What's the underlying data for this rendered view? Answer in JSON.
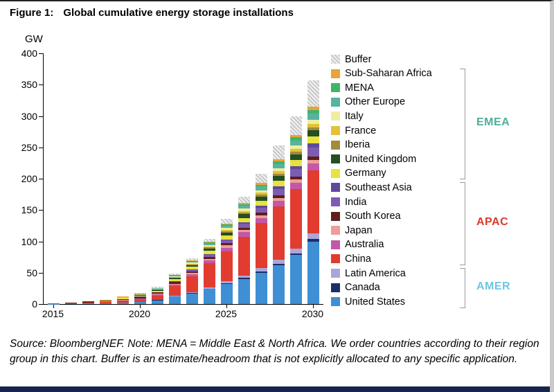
{
  "figure": {
    "title_label": "Figure 1:",
    "title": "Global cumulative energy storage installations",
    "y_unit": "GW",
    "source_note": "Source: BloombergNEF. Note: MENA = Middle East & North Africa. We order countries according to their region group in this chart. Buffer is an estimate/headroom that is not explicitly allocated to any specific application."
  },
  "chart_data": {
    "type": "bar",
    "stacked": true,
    "title": "Global cumulative energy storage installations",
    "ylabel": "GW",
    "ylim": [
      0,
      400
    ],
    "yticks": [
      0,
      50,
      100,
      150,
      200,
      250,
      300,
      350,
      400
    ],
    "x": [
      2015,
      2016,
      2017,
      2018,
      2019,
      2020,
      2021,
      2022,
      2023,
      2024,
      2025,
      2026,
      2027,
      2028,
      2029,
      2030
    ],
    "xticks": [
      2015,
      2020,
      2025,
      2030
    ],
    "legend_position": "right",
    "grid": false,
    "series": [
      {
        "name": "Buffer",
        "color": "#e8e8e8",
        "pattern": "hatch",
        "region": "",
        "values": [
          0,
          0,
          0,
          0.2,
          0.5,
          0.8,
          1.3,
          2,
          3.5,
          5,
          7,
          10,
          15,
          22,
          30,
          42
        ]
      },
      {
        "name": "Sub-Saharan Africa",
        "color": "#e8a33d",
        "region": "EMEA",
        "values": [
          0,
          0,
          0,
          0,
          0.1,
          0.2,
          0.3,
          0.5,
          0.8,
          1,
          1.5,
          2,
          2.5,
          3,
          4,
          5
        ]
      },
      {
        "name": "MENA",
        "color": "#3fb56a",
        "region": "EMEA",
        "values": [
          0,
          0,
          0,
          0.1,
          0.2,
          0.3,
          0.4,
          0.6,
          1,
          1.5,
          2,
          2.5,
          3,
          4,
          5,
          6
        ]
      },
      {
        "name": "Other Europe",
        "color": "#56b4a0",
        "region": "EMEA",
        "values": [
          0,
          0.1,
          0.2,
          0.3,
          0.5,
          0.7,
          1,
          1.5,
          2,
          3,
          4,
          5,
          6,
          7,
          8,
          10
        ]
      },
      {
        "name": "Italy",
        "color": "#f0ee9e",
        "region": "EMEA",
        "values": [
          0,
          0,
          0.1,
          0.2,
          0.3,
          0.4,
          0.6,
          1,
          1.5,
          2,
          3,
          3.5,
          4,
          5,
          6,
          7
        ]
      },
      {
        "name": "France",
        "color": "#e3c138",
        "region": "EMEA",
        "values": [
          0,
          0.1,
          0.1,
          0.2,
          0.3,
          0.4,
          0.5,
          0.8,
          1,
          1.5,
          2,
          2.5,
          3,
          3.5,
          4,
          5
        ]
      },
      {
        "name": "Iberia",
        "color": "#a08c3a",
        "region": "EMEA",
        "values": [
          0,
          0,
          0,
          0,
          0.1,
          0.2,
          0.3,
          0.5,
          1,
          1.5,
          2,
          2.5,
          3,
          3.5,
          4,
          5
        ]
      },
      {
        "name": "United Kingdom",
        "color": "#234f23",
        "region": "EMEA",
        "values": [
          0.1,
          0.2,
          0.3,
          0.5,
          0.8,
          1.2,
          1.6,
          2.2,
          3,
          4,
          5,
          6,
          7,
          8,
          9,
          10
        ]
      },
      {
        "name": "Germany",
        "color": "#e8e23f",
        "region": "EMEA",
        "values": [
          0.3,
          0.5,
          0.7,
          1,
          1.3,
          1.6,
          2,
          3,
          4,
          5,
          6,
          7,
          8,
          9,
          10,
          11
        ]
      },
      {
        "name": "Southeast Asia",
        "color": "#5d4a9c",
        "region": "APAC",
        "values": [
          0,
          0,
          0,
          0,
          0.1,
          0.2,
          0.3,
          0.5,
          1,
          1.5,
          2,
          2.5,
          3,
          4,
          5,
          6
        ]
      },
      {
        "name": "India",
        "color": "#7e5cb0",
        "region": "APAC",
        "values": [
          0,
          0,
          0,
          0.1,
          0.2,
          0.3,
          0.5,
          1,
          2,
          3,
          4.5,
          6,
          8,
          10,
          12,
          15
        ]
      },
      {
        "name": "South Korea",
        "color": "#5e1f1c",
        "region": "APAC",
        "values": [
          0.2,
          0.3,
          0.5,
          1,
          1.5,
          1.8,
          2,
          2.3,
          2.6,
          3,
          3.3,
          3.6,
          4,
          4.3,
          4.6,
          5
        ]
      },
      {
        "name": "Japan",
        "color": "#ee9e9a",
        "region": "APAC",
        "values": [
          0.2,
          0.3,
          0.4,
          0.5,
          0.7,
          1,
          1.3,
          1.8,
          2.3,
          3,
          3.5,
          4,
          4.5,
          5,
          5.5,
          6
        ]
      },
      {
        "name": "Australia",
        "color": "#c258a8",
        "region": "APAC",
        "values": [
          0,
          0.1,
          0.2,
          0.3,
          0.5,
          1,
          1.5,
          2.5,
          3.5,
          4.5,
          6,
          7,
          8,
          9,
          10,
          11
        ]
      },
      {
        "name": "China",
        "color": "#e13c2f",
        "region": "APAC",
        "values": [
          0.2,
          0.5,
          1,
          2,
          3,
          4,
          7,
          15,
          25,
          38,
          48,
          62,
          72,
          85,
          95,
          100
        ]
      },
      {
        "name": "Latin America",
        "color": "#aaa6d8",
        "region": "AMER",
        "values": [
          0,
          0,
          0,
          0.1,
          0.2,
          0.3,
          0.5,
          1,
          1.5,
          2,
          3,
          4,
          5,
          6,
          7,
          9
        ]
      },
      {
        "name": "Canada",
        "color": "#1c2d69",
        "region": "AMER",
        "values": [
          0,
          0,
          0,
          0,
          0,
          0.1,
          0.2,
          0.3,
          0.5,
          0.8,
          1,
          1.5,
          2,
          2.5,
          3,
          4
        ]
      },
      {
        "name": "United States",
        "color": "#3f8fd4",
        "region": "AMER",
        "values": [
          0.5,
          0.7,
          1,
          1.5,
          2,
          3,
          6,
          12,
          17,
          24,
          32,
          40,
          50,
          62,
          78,
          100
        ]
      }
    ],
    "region_groups": [
      {
        "label": "EMEA",
        "color": "#4fae9b",
        "from": 1,
        "to": 8
      },
      {
        "label": "APAC",
        "color": "#d93a2b",
        "from": 9,
        "to": 14
      },
      {
        "label": "AMER",
        "color": "#6fc7e0",
        "from": 15,
        "to": 17
      }
    ]
  }
}
